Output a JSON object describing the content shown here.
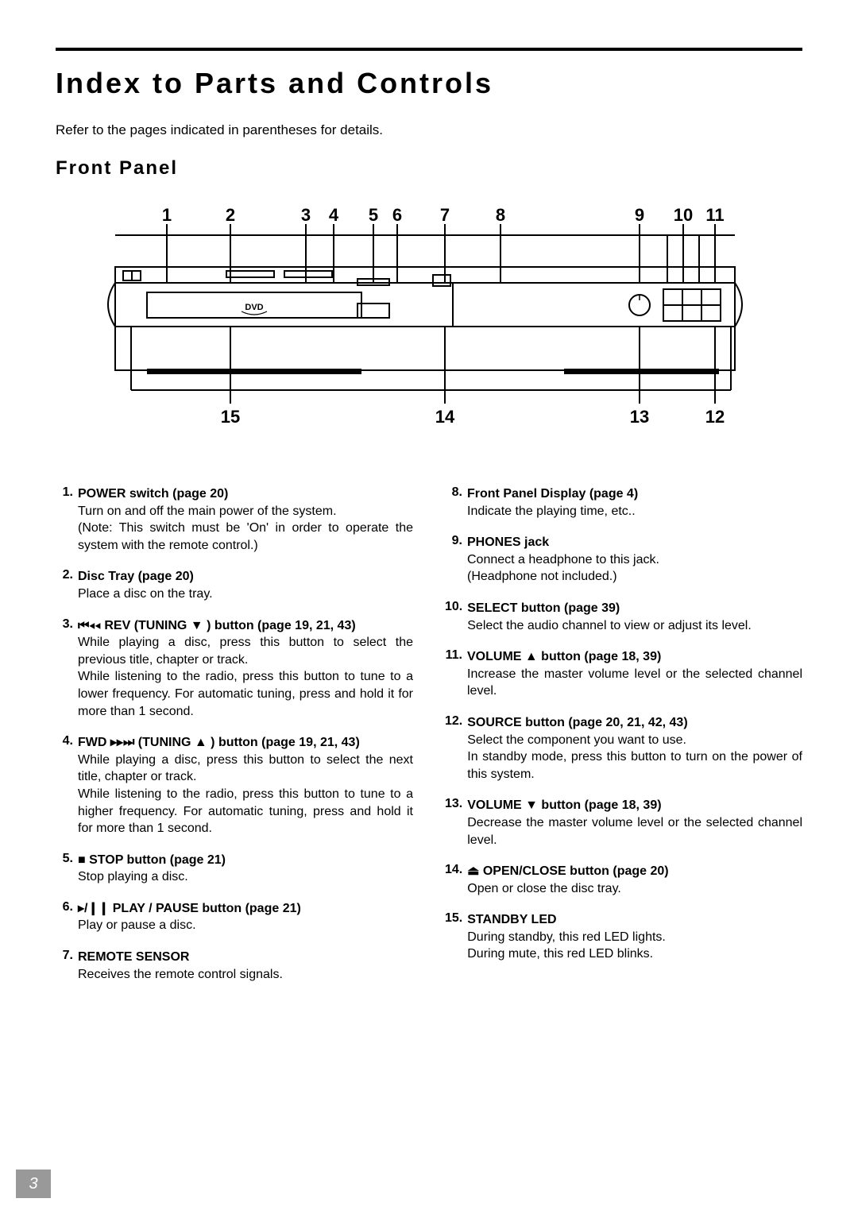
{
  "title": "Index to Parts and Controls",
  "intro": "Refer to the pages indicated in parentheses for details.",
  "section": "Front Panel",
  "pageNumber": "3",
  "diagram": {
    "topLabels": [
      "1",
      "2",
      "3",
      "4",
      "5",
      "6",
      "7",
      "8",
      "9",
      "10",
      "11"
    ],
    "bottomLabels": [
      "15",
      "14",
      "13",
      "12"
    ],
    "topX": [
      140,
      220,
      315,
      350,
      400,
      430,
      490,
      560,
      735,
      790,
      830
    ],
    "botLabelX": [
      220,
      490,
      735,
      830
    ],
    "botTickX": [
      220,
      490,
      735,
      830
    ]
  },
  "symbols": {
    "rev": "⏮◂◂",
    "fwd": "▸▸⏭",
    "down": "▼",
    "up": "▲",
    "stop": "■",
    "playpause": "▸/❙❙",
    "eject": "⏏"
  },
  "left": [
    {
      "num": "1.",
      "title": "POWER switch (page 20)",
      "desc": [
        "Turn on and off the main power of the system.",
        "(Note: This switch must be 'On' in order to operate the system with the remote control.)"
      ]
    },
    {
      "num": "2.",
      "title": "Disc Tray (page 20)",
      "desc": [
        "Place a disc on the tray."
      ]
    },
    {
      "num": "3.",
      "titleParts": [
        "{rev}",
        " REV (TUNING ",
        "{down}",
        " ) button (page 19, 21, 43)"
      ],
      "desc": [
        "While playing a disc, press this button to select the previous title, chapter or track.",
        "While listening to the radio, press this button to tune to a lower frequency. For automatic tuning, press and hold it for more than 1 second."
      ]
    },
    {
      "num": "4.",
      "titleParts": [
        "FWD ",
        "{fwd}",
        " (TUNING ",
        "{up}",
        " ) button (page 19, 21, 43)"
      ],
      "desc": [
        "While playing a disc, press this button to select the next title, chapter or track.",
        "While listening to the radio, press this button to tune to a higher frequency. For automatic tuning, press and hold it for more than 1 second."
      ]
    },
    {
      "num": "5.",
      "titleParts": [
        "{stop}",
        " STOP button (page 21)"
      ],
      "desc": [
        "Stop playing a disc."
      ]
    },
    {
      "num": "6.",
      "titleParts": [
        "{playpause}",
        " PLAY / PAUSE button (page 21)"
      ],
      "desc": [
        "Play or pause a disc."
      ]
    },
    {
      "num": "7.",
      "title": "REMOTE SENSOR",
      "desc": [
        "Receives the remote control signals."
      ]
    }
  ],
  "right": [
    {
      "num": "8.",
      "title": "Front Panel Display (page 4)",
      "desc": [
        "Indicate the playing time, etc.."
      ]
    },
    {
      "num": "9.",
      "title": "PHONES jack",
      "desc": [
        "Connect a headphone to this jack.",
        "(Headphone not included.)"
      ]
    },
    {
      "num": "10.",
      "title": "SELECT button (page 39)",
      "desc": [
        "Select the audio channel to view or adjust its level."
      ]
    },
    {
      "num": "11.",
      "titleParts": [
        "VOLUME ",
        "{up}",
        "  button (page 18, 39)"
      ],
      "desc": [
        "Increase the master volume level or the selected channel level."
      ]
    },
    {
      "num": "12.",
      "title": "SOURCE button (page 20, 21, 42, 43)",
      "desc": [
        "Select the component you want to use.",
        "In standby mode, press this button to turn on the power of this system."
      ]
    },
    {
      "num": "13.",
      "titleParts": [
        "VOLUME ",
        "{down}",
        "  button (page 18, 39)"
      ],
      "desc": [
        "Decrease the master volume level or the selected channel level."
      ]
    },
    {
      "num": "14.",
      "titleParts": [
        "{eject}",
        " OPEN/CLOSE button (page 20)"
      ],
      "desc": [
        "Open or close the disc tray."
      ]
    },
    {
      "num": "15.",
      "title": "STANDBY LED",
      "desc": [
        "During standby, this red LED lights.",
        "During mute, this red LED blinks."
      ]
    }
  ]
}
